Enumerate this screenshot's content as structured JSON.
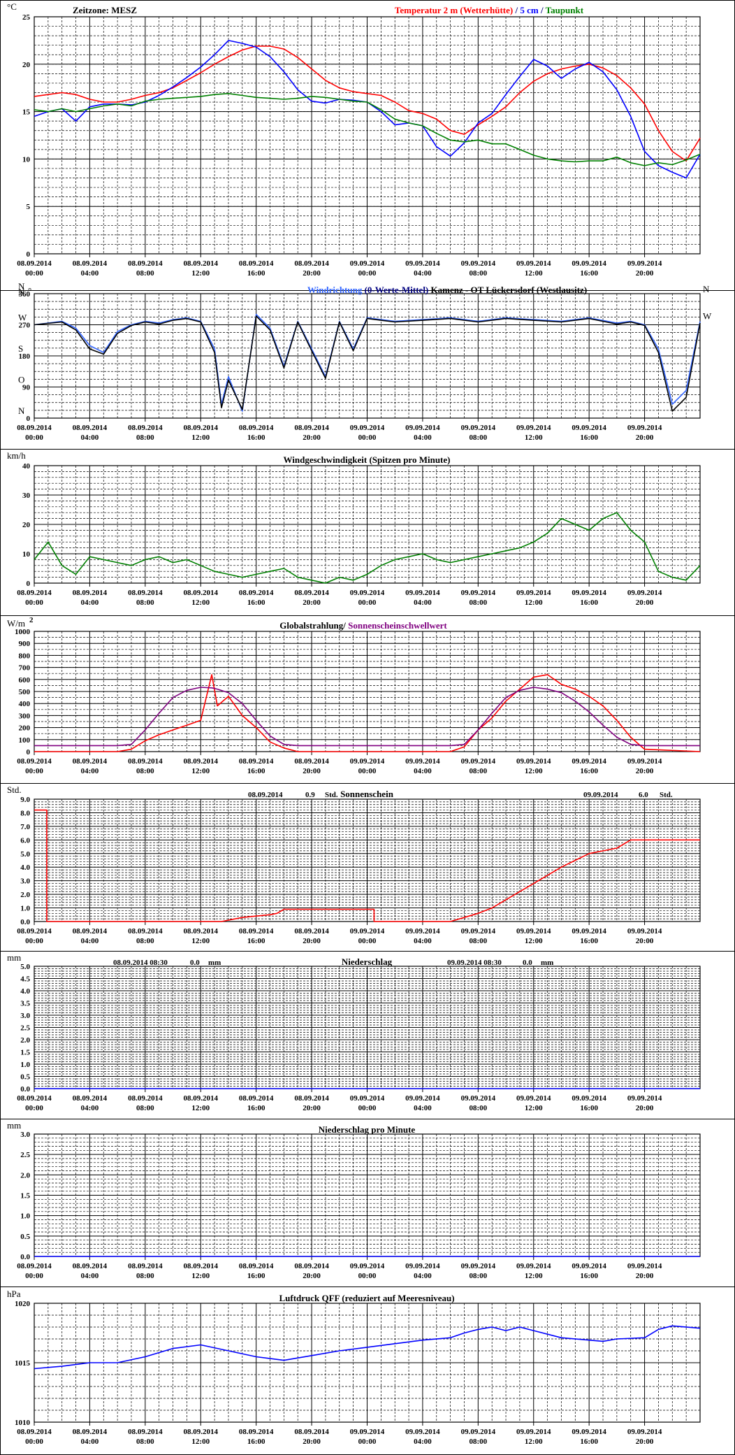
{
  "time_labels": [
    [
      "08.09.2014",
      "00:00"
    ],
    [
      "08.09.2014",
      "04:00"
    ],
    [
      "08.09.2014",
      "08:00"
    ],
    [
      "08.09.2014",
      "12:00"
    ],
    [
      "08.09.2014",
      "16:00"
    ],
    [
      "08.09.2014",
      "20:00"
    ],
    [
      "09.09.2014",
      "00:00"
    ],
    [
      "09.09.2014",
      "04:00"
    ],
    [
      "09.09.2014",
      "08:00"
    ],
    [
      "09.09.2014",
      "12:00"
    ],
    [
      "09.09.2014",
      "16:00"
    ],
    [
      "09.09.2014",
      "20:00"
    ]
  ],
  "colors": {
    "red": "#ff0000",
    "blue": "#0000ff",
    "green": "#008000",
    "light_blue": "#3366ff",
    "black": "#000000",
    "purple": "#800080",
    "dark_blue": "#000080"
  },
  "chart_data": [
    {
      "type": "line",
      "unit": "°C",
      "timezone_label": "Zeitzone: MESZ",
      "title_parts": [
        {
          "text": "Temperatur 2 m (Wetterhütte)",
          "color": "#ff0000"
        },
        {
          "text": "  /  ",
          "color": "#000080"
        },
        {
          "text": "5 cm",
          "color": "#0000ff"
        },
        {
          "text": " / ",
          "color": "#000080"
        },
        {
          "text": "Taupunkt",
          "color": "#008000"
        }
      ],
      "ylim": [
        0,
        25
      ],
      "yticks": [
        "0",
        "5",
        "10",
        "15",
        "20",
        "25"
      ],
      "x_hours": [
        0,
        1,
        2,
        3,
        4,
        5,
        6,
        7,
        8,
        9,
        10,
        11,
        12,
        13,
        14,
        15,
        16,
        17,
        18,
        19,
        20,
        21,
        22,
        23,
        24,
        25,
        26,
        27,
        28,
        29,
        30,
        31,
        32,
        33,
        34,
        35,
        36,
        37,
        38,
        39,
        40,
        41,
        42,
        43,
        44,
        45,
        46,
        47,
        48
      ],
      "series": [
        {
          "name": "Temperatur 2 m (Wetterhütte)",
          "color": "#ff0000",
          "values": [
            16.6,
            16.8,
            17.0,
            16.8,
            16.3,
            16.0,
            16.0,
            16.3,
            16.7,
            17.0,
            17.5,
            18.3,
            19.1,
            20.0,
            20.8,
            21.5,
            21.9,
            21.9,
            21.6,
            20.7,
            19.5,
            18.3,
            17.5,
            17.1,
            16.9,
            16.7,
            16.0,
            15.1,
            14.8,
            14.2,
            13.0,
            12.6,
            13.6,
            14.5,
            15.5,
            17.0,
            18.2,
            19.0,
            19.5,
            19.8,
            20.0,
            19.6,
            18.8,
            17.5,
            15.8,
            13.0,
            10.8,
            9.8,
            12.2
          ]
        },
        {
          "name": "5 cm",
          "color": "#0000ff",
          "values": [
            14.5,
            15.0,
            15.3,
            14.0,
            15.5,
            15.8,
            15.8,
            15.7,
            16.0,
            16.7,
            17.6,
            18.6,
            19.7,
            21.0,
            22.5,
            22.2,
            21.8,
            20.8,
            19.2,
            17.3,
            16.1,
            15.9,
            16.3,
            16.2,
            16.0,
            15.0,
            13.6,
            13.8,
            13.5,
            11.3,
            10.3,
            11.7,
            13.8,
            14.8,
            16.8,
            18.7,
            20.5,
            19.8,
            18.5,
            19.5,
            20.2,
            19.2,
            17.3,
            14.5,
            10.8,
            9.3,
            8.6,
            8.0,
            10.5
          ]
        },
        {
          "name": "Taupunkt",
          "color": "#008000",
          "values": [
            15.2,
            15.0,
            15.3,
            15.0,
            15.3,
            15.6,
            15.8,
            15.6,
            16.1,
            16.3,
            16.4,
            16.5,
            16.6,
            16.8,
            16.9,
            16.7,
            16.5,
            16.4,
            16.3,
            16.4,
            16.6,
            16.5,
            16.3,
            16.1,
            16.0,
            15.2,
            14.2,
            13.8,
            13.5,
            12.7,
            12.0,
            11.8,
            12.0,
            11.6,
            11.6,
            11.0,
            10.4,
            10.0,
            9.8,
            9.7,
            9.8,
            9.8,
            10.2,
            9.6,
            9.3,
            9.6,
            9.4,
            9.9,
            10.5
          ]
        }
      ]
    },
    {
      "type": "line",
      "unit": "N °",
      "title_parts": [
        {
          "text": "Windrichtung",
          "color": "#3366ff"
        },
        {
          "text": " (0-Werte-Mittel)",
          "color": "#000080"
        },
        {
          "text": "            Kamenz - OT Lückersdorf (Westlausitz)",
          "color": "#000000"
        }
      ],
      "ylim": [
        0,
        360
      ],
      "yticks": [
        "0",
        "90",
        "180",
        "270",
        "360"
      ],
      "compass_labels": {
        "N": 360,
        "W": 270,
        "S": 180,
        "O": 90,
        "N_bottom": 0
      },
      "x_hours": [
        0,
        2,
        3,
        4,
        5,
        6,
        7,
        8,
        9,
        10,
        11,
        12,
        13,
        13.5,
        14,
        15,
        16,
        17,
        18,
        19,
        20,
        21,
        22,
        23,
        24,
        25,
        26,
        28,
        30,
        32,
        34,
        36,
        38,
        40,
        42,
        43,
        44,
        45,
        46,
        47,
        48
      ],
      "series": [
        {
          "name": "Windrichtung",
          "color": "#3366ff",
          "values": [
            270,
            280,
            260,
            210,
            190,
            250,
            270,
            280,
            275,
            285,
            290,
            280,
            200,
            40,
            120,
            20,
            300,
            260,
            150,
            280,
            200,
            120,
            280,
            200,
            290,
            285,
            280,
            285,
            290,
            280,
            290,
            285,
            280,
            290,
            275,
            280,
            270,
            200,
            40,
            80,
            280
          ]
        },
        {
          "name": "0-Werte-Mittel",
          "color": "#000000",
          "values": [
            270,
            278,
            255,
            200,
            185,
            245,
            268,
            278,
            272,
            283,
            288,
            278,
            190,
            30,
            110,
            25,
            295,
            255,
            145,
            278,
            195,
            115,
            278,
            195,
            288,
            283,
            278,
            283,
            288,
            278,
            288,
            283,
            278,
            288,
            272,
            278,
            268,
            190,
            20,
            60,
            275
          ]
        }
      ]
    },
    {
      "type": "line",
      "unit": "km/h",
      "title": "Windgeschwindigkeit (Spitzen pro Minute)",
      "ylim": [
        0,
        40
      ],
      "yticks": [
        "0",
        "10",
        "20",
        "30",
        "40"
      ],
      "x_hours": [
        0,
        1,
        2,
        3,
        4,
        5,
        6,
        7,
        8,
        9,
        10,
        11,
        12,
        13,
        14,
        15,
        16,
        17,
        18,
        19,
        20,
        21,
        22,
        23,
        24,
        25,
        26,
        27,
        28,
        29,
        30,
        31,
        32,
        33,
        34,
        35,
        36,
        37,
        38,
        39,
        40,
        41,
        42,
        43,
        44,
        45,
        46,
        47,
        48
      ],
      "series": [
        {
          "name": "Windgeschwindigkeit",
          "color": "#008000",
          "values": [
            8,
            14,
            6,
            3,
            9,
            8,
            7,
            6,
            8,
            9,
            7,
            8,
            6,
            4,
            3,
            2,
            3,
            4,
            5,
            2,
            1,
            0,
            2,
            1,
            3,
            6,
            8,
            9,
            10,
            8,
            7,
            8,
            9,
            10,
            11,
            12,
            14,
            17,
            22,
            20,
            18,
            22,
            24,
            18,
            14,
            4,
            2,
            1,
            6
          ]
        }
      ]
    },
    {
      "type": "line",
      "unit": "W/m²",
      "title_parts": [
        {
          "text": "Globalstrahlung/ ",
          "color": "#000000"
        },
        {
          "text": "Sonnenscheinschwellwert",
          "color": "#800080"
        }
      ],
      "ylim": [
        0,
        1000
      ],
      "yticks": [
        "0",
        "100",
        "200",
        "300",
        "400",
        "500",
        "600",
        "700",
        "800",
        "900",
        "1000"
      ],
      "x_hours": [
        0,
        6,
        7,
        8,
        9,
        10,
        11,
        12,
        12.8,
        13.2,
        14,
        15,
        16,
        17,
        18,
        19,
        30,
        31,
        32,
        33,
        34,
        35,
        36,
        37,
        38,
        39,
        40,
        41,
        42,
        43,
        44,
        48
      ],
      "series": [
        {
          "name": "Globalstrahlung",
          "color": "#ff0000",
          "values": [
            0,
            0,
            20,
            90,
            140,
            180,
            220,
            260,
            640,
            380,
            460,
            300,
            200,
            80,
            30,
            0,
            0,
            40,
            180,
            280,
            420,
            520,
            620,
            640,
            560,
            520,
            460,
            380,
            260,
            120,
            20,
            0
          ]
        },
        {
          "name": "Sonnenscheinschwellwert",
          "color": "#800080",
          "values": [
            50,
            50,
            60,
            180,
            320,
            450,
            510,
            535,
            530,
            520,
            490,
            400,
            260,
            130,
            60,
            50,
            50,
            60,
            180,
            320,
            450,
            510,
            535,
            520,
            490,
            420,
            330,
            220,
            120,
            60,
            50,
            50
          ]
        }
      ]
    },
    {
      "type": "line",
      "unit": "Std.",
      "title": "Sonnenschein",
      "day_totals": [
        {
          "date": "08.09.2014",
          "value": "0.9",
          "unit": "Std."
        },
        {
          "date": "09.09.2014",
          "value": "6.0",
          "unit": "Std."
        }
      ],
      "ylim": [
        0,
        9
      ],
      "yticks": [
        "0.0",
        "1.0",
        "2.0",
        "3.0",
        "4.0",
        "5.0",
        "6.0",
        "7.0",
        "8.0",
        "9.0"
      ],
      "x_hours": [
        0,
        0.9,
        0.9,
        13.5,
        15,
        16,
        17,
        17.5,
        18,
        24.5,
        24.5,
        30,
        31,
        32,
        33,
        34,
        35,
        36,
        37,
        38,
        39,
        40,
        41,
        42,
        43,
        48
      ],
      "series": [
        {
          "name": "Sonnenschein",
          "color": "#ff0000",
          "values": [
            8.2,
            8.2,
            0.0,
            0.0,
            0.3,
            0.4,
            0.5,
            0.6,
            0.9,
            0.9,
            0.0,
            0.0,
            0.3,
            0.6,
            1.0,
            1.6,
            2.2,
            2.8,
            3.4,
            4.0,
            4.5,
            5.0,
            5.2,
            5.4,
            6.0,
            6.0
          ]
        }
      ]
    },
    {
      "type": "line",
      "unit": "mm",
      "title": "Niederschlag",
      "day_totals": [
        {
          "date": "08.09.2014 08:30",
          "value": "0.0",
          "unit": "mm"
        },
        {
          "date": "09.09.2014 08:30",
          "value": "0.0",
          "unit": "mm"
        }
      ],
      "ylim": [
        0,
        5
      ],
      "yticks": [
        "0.0",
        "0.5",
        "1.0",
        "1.5",
        "2.0",
        "2.5",
        "3.0",
        "3.5",
        "4.0",
        "4.5",
        "5.0"
      ],
      "x_hours": [
        0,
        48
      ],
      "series": [
        {
          "name": "Niederschlag",
          "color": "#0000ff",
          "values": [
            0,
            0
          ]
        }
      ]
    },
    {
      "type": "line",
      "unit": "mm",
      "title": "Niederschlag pro Minute",
      "ylim": [
        0,
        3
      ],
      "yticks": [
        "0.0",
        "0.5",
        "1.0",
        "1.5",
        "2.0",
        "2.5",
        "3.0"
      ],
      "x_hours": [
        0,
        48
      ],
      "series": [
        {
          "name": "Niederschlag pro Minute",
          "color": "#0000ff",
          "values": [
            0,
            0
          ]
        }
      ]
    },
    {
      "type": "line",
      "unit": "hPa",
      "title": "Luftdruck QFF (reduziert auf Meeresniveau)",
      "ylim": [
        1010,
        1020
      ],
      "yticks": [
        "1010",
        "1015",
        "1020"
      ],
      "x_hours": [
        0,
        2,
        4,
        6,
        8,
        10,
        12,
        14,
        16,
        18,
        20,
        22,
        24,
        26,
        28,
        30,
        31,
        32,
        33,
        34,
        35,
        36,
        38,
        40,
        41,
        42,
        44,
        45,
        46,
        48
      ],
      "series": [
        {
          "name": "Luftdruck",
          "color": "#0000ff",
          "values": [
            1014.5,
            1014.7,
            1015.0,
            1015.0,
            1015.5,
            1016.2,
            1016.5,
            1016.0,
            1015.5,
            1015.2,
            1015.6,
            1016.0,
            1016.3,
            1016.6,
            1016.9,
            1017.1,
            1017.5,
            1017.8,
            1018.0,
            1017.7,
            1018.0,
            1017.7,
            1017.1,
            1016.9,
            1016.8,
            1017.0,
            1017.1,
            1017.8,
            1018.1,
            1017.9
          ]
        }
      ]
    }
  ]
}
